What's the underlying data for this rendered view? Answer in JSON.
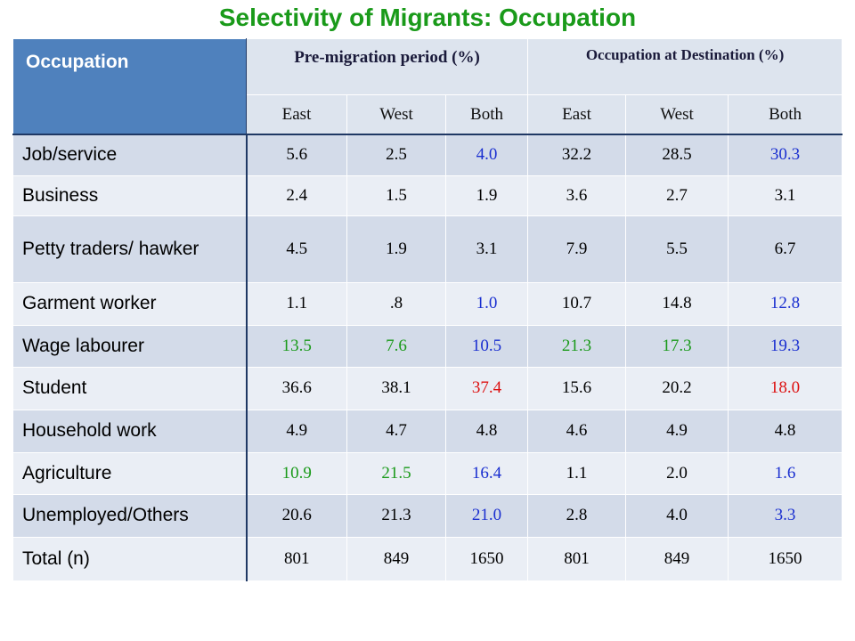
{
  "title": "Selectivity of Migrants: Occupation",
  "table": {
    "header": {
      "occupation": "Occupation",
      "group1": "Pre-migration period (%)",
      "group2": "Occupation at Destination (%)",
      "sub": [
        "East",
        "West",
        "Both",
        "East",
        "West",
        "Both"
      ]
    },
    "rows": [
      {
        "label": "Job/service",
        "values": [
          "5.6",
          "2.5",
          "4.0",
          "32.2",
          "28.5",
          "30.3"
        ],
        "colors": [
          "black",
          "black",
          "blue",
          "black",
          "black",
          "blue"
        ]
      },
      {
        "label": "Business",
        "values": [
          "2.4",
          "1.5",
          "1.9",
          "3.6",
          "2.7",
          "3.1"
        ],
        "colors": [
          "black",
          "black",
          "black",
          "black",
          "black",
          "black"
        ]
      },
      {
        "label": "Petty traders/ hawker",
        "values": [
          "4.5",
          "1.9",
          "3.1",
          "7.9",
          "5.5",
          "6.7"
        ],
        "colors": [
          "black",
          "black",
          "black",
          "black",
          "black",
          "black"
        ]
      },
      {
        "label": "Garment worker",
        "values": [
          "1.1",
          ".8",
          "1.0",
          "10.7",
          "14.8",
          "12.8"
        ],
        "colors": [
          "black",
          "black",
          "blue",
          "black",
          "black",
          "blue"
        ]
      },
      {
        "label": "Wage labourer",
        "values": [
          "13.5",
          "7.6",
          "10.5",
          "21.3",
          "17.3",
          "19.3"
        ],
        "colors": [
          "green",
          "green",
          "blue",
          "green",
          "green",
          "blue"
        ]
      },
      {
        "label": "Student",
        "values": [
          "36.6",
          "38.1",
          "37.4",
          "15.6",
          "20.2",
          "18.0"
        ],
        "colors": [
          "black",
          "black",
          "red",
          "black",
          "black",
          "red"
        ]
      },
      {
        "label": "Household work",
        "values": [
          "4.9",
          "4.7",
          "4.8",
          "4.6",
          "4.9",
          "4.8"
        ],
        "colors": [
          "black",
          "black",
          "black",
          "black",
          "black",
          "black"
        ]
      },
      {
        "label": "Agriculture",
        "values": [
          "10.9",
          "21.5",
          "16.4",
          "1.1",
          "2.0",
          "1.6"
        ],
        "colors": [
          "green",
          "green",
          "blue",
          "black",
          "black",
          "blue"
        ]
      },
      {
        "label": "Unemployed/Others",
        "values": [
          "20.6",
          "21.3",
          "21.0",
          "2.8",
          "4.0",
          "3.3"
        ],
        "colors": [
          "black",
          "black",
          "blue",
          "black",
          "black",
          "blue"
        ]
      },
      {
        "label": "Total (n)",
        "values": [
          "801",
          "849",
          "1650",
          "801",
          "849",
          "1650"
        ],
        "colors": [
          "black",
          "black",
          "black",
          "black",
          "black",
          "black"
        ]
      }
    ]
  },
  "colors": {
    "title": "#1a9a1a",
    "header_bg": "#4f81bd",
    "row_dark": "#d3dbe9",
    "row_light": "#eaeef5",
    "blue": "#1a2fd0",
    "green": "#1a9a1a",
    "red": "#dd1111"
  }
}
